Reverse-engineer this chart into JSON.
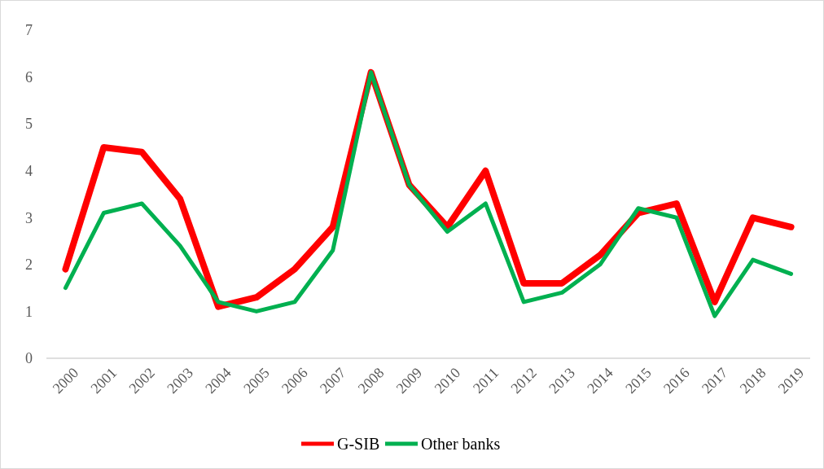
{
  "chart_data": {
    "type": "line",
    "categories": [
      "2000",
      "2001",
      "2002",
      "2003",
      "2004",
      "2005",
      "2006",
      "2007",
      "2008",
      "2009",
      "2010",
      "2011",
      "2012",
      "2013",
      "2014",
      "2015",
      "2016",
      "2017",
      "2018",
      "2019"
    ],
    "series": [
      {
        "name": "G-SIB",
        "color": "#ff0000",
        "values": [
          1.9,
          4.5,
          4.4,
          3.4,
          1.1,
          1.3,
          1.9,
          2.8,
          6.1,
          3.7,
          2.8,
          4.0,
          1.6,
          1.6,
          2.2,
          3.1,
          3.3,
          1.2,
          3.0,
          2.8
        ]
      },
      {
        "name": "Other banks",
        "color": "#00b050",
        "values": [
          1.5,
          3.1,
          3.3,
          2.4,
          1.2,
          1.0,
          1.2,
          2.3,
          6.1,
          3.7,
          2.7,
          3.3,
          1.2,
          1.4,
          2.0,
          3.2,
          3.0,
          0.9,
          2.1,
          1.8
        ]
      }
    ],
    "ylim": [
      0,
      7
    ],
    "yticks": [
      0,
      1,
      2,
      3,
      4,
      5,
      6,
      7
    ],
    "grid": false,
    "legend": "bottom",
    "marker": "none",
    "line_style": "solid"
  }
}
